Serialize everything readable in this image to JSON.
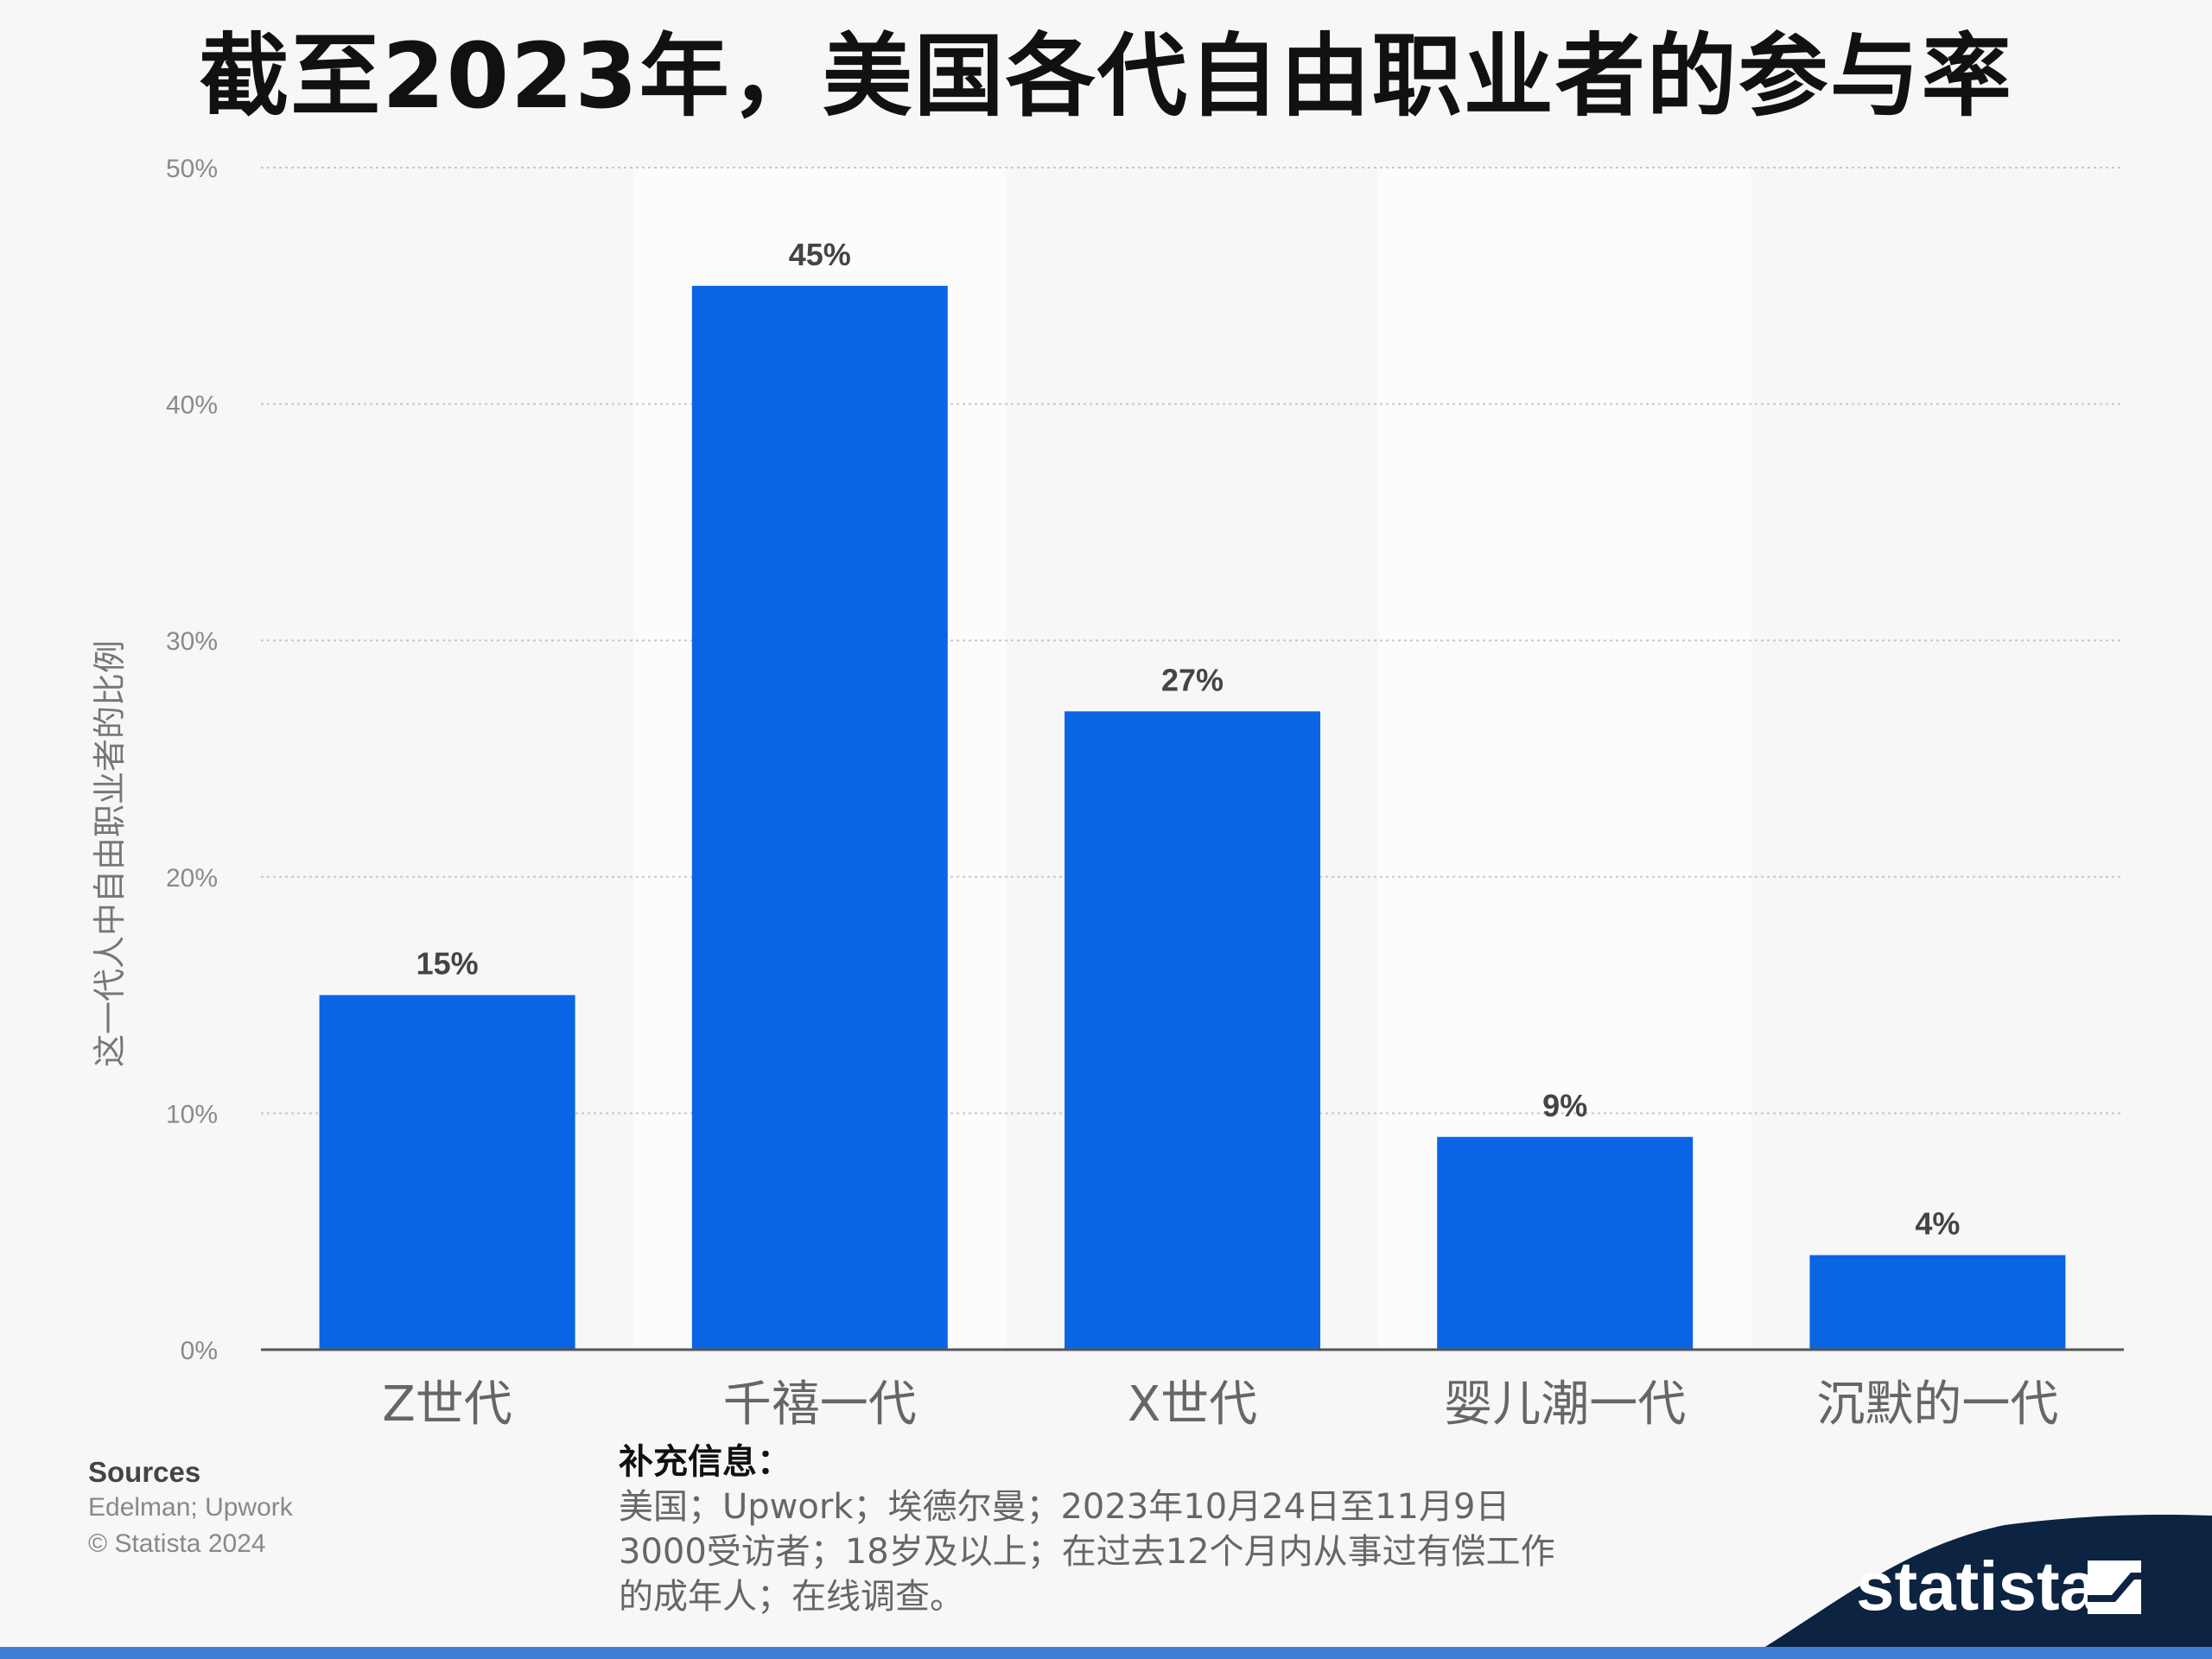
{
  "chart_data": {
    "type": "bar",
    "title": "截至2023年，美国各代自由职业者的参与率",
    "ylabel": "这一代人中自由职业者的比例",
    "xlabel": "",
    "categories": [
      "Z世代",
      "千禧一代",
      "X世代",
      "婴儿潮一代",
      "沉默的一代"
    ],
    "values": [
      15,
      45,
      27,
      9,
      4
    ],
    "value_labels": [
      "15%",
      "45%",
      "27%",
      "9%",
      "4%"
    ],
    "ylim": [
      0,
      50
    ],
    "yticks": [
      0,
      10,
      20,
      30,
      40,
      50
    ],
    "ytick_labels": [
      "0%",
      "10%",
      "20%",
      "30%",
      "40%",
      "50%"
    ],
    "grid": true,
    "bar_color": "#0965e3"
  },
  "footer": {
    "sources_heading": "Sources",
    "sources_lines": [
      "Edelman; Upwork",
      "© Statista 2024"
    ],
    "info_heading": "补充信息：",
    "info_lines": [
      "美国；Upwork；埃德尔曼；2023年10月24日至11月9日",
      "3000受访者；18岁及以上；在过去12个月内从事过有偿工作",
      "的成年人；在线调查。"
    ]
  },
  "brand": {
    "name": "statista",
    "color": "#0c2342",
    "accent": "#3f7fd4"
  }
}
